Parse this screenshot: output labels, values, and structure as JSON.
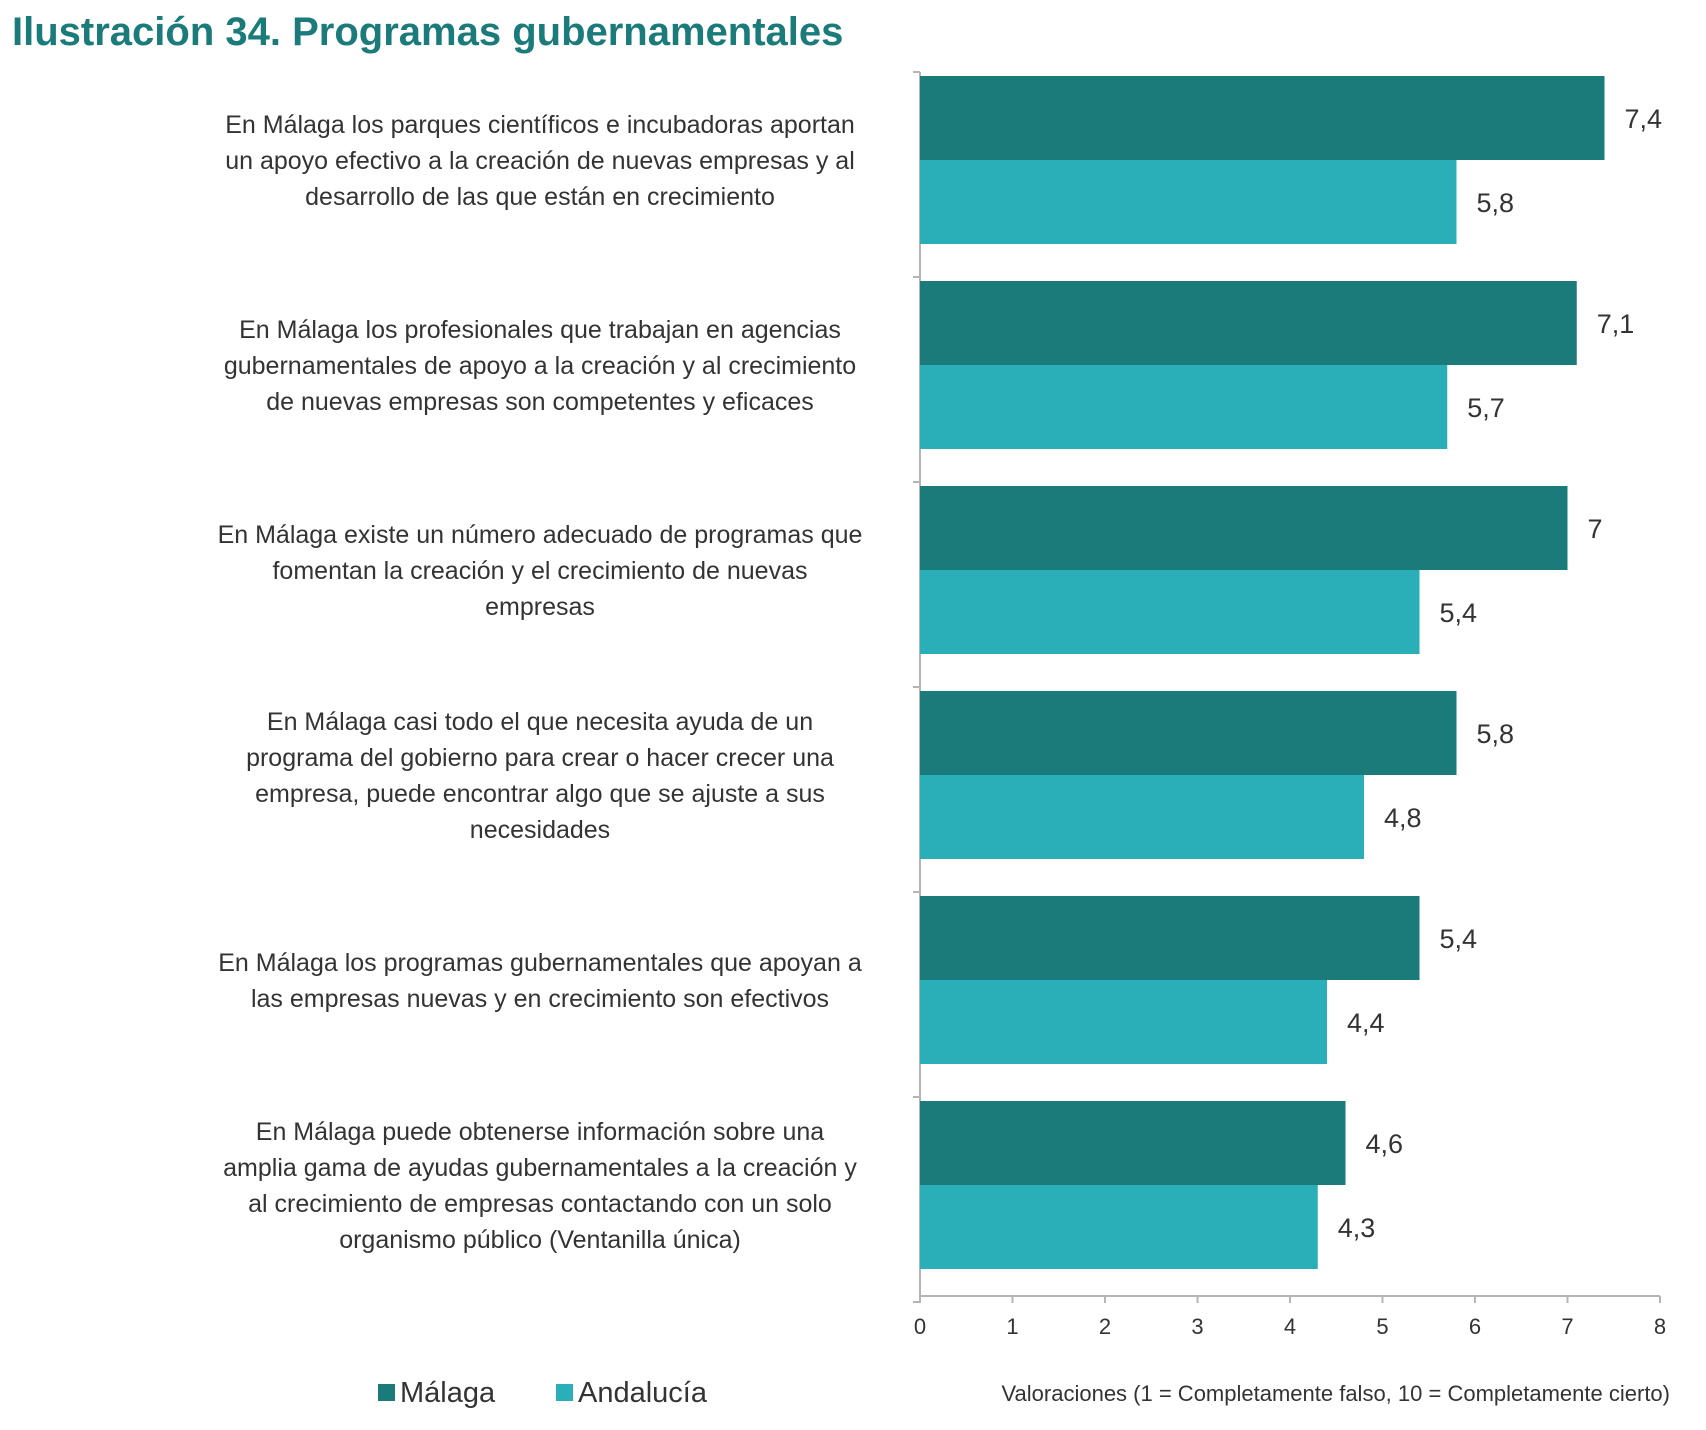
{
  "title": "Ilustración 34. Programas gubernamentales",
  "colors": {
    "malaga": "#1b7a7a",
    "andalucia": "#2aaeb8",
    "title": "#1b7a7a"
  },
  "chart_data": {
    "type": "bar",
    "orientation": "horizontal",
    "categories": [
      [
        "En Málaga los parques científicos e incubadoras aportan",
        "un apoyo efectivo a la creación de nuevas empresas y al",
        "desarrollo de las que están en crecimiento"
      ],
      [
        "En Málaga los profesionales que trabajan en agencias",
        "gubernamentales de apoyo a la creación y al crecimiento",
        "de nuevas empresas son competentes y eficaces"
      ],
      [
        "En Málaga existe un número adecuado de programas que",
        "fomentan la creación y el crecimiento de nuevas",
        "empresas"
      ],
      [
        "En Málaga casi todo el que necesita ayuda de un",
        "programa del gobierno para crear o hacer crecer una",
        "empresa, puede encontrar algo que se ajuste a sus",
        "necesidades"
      ],
      [
        "En Málaga los programas gubernamentales que apoyan a",
        "las empresas nuevas y en crecimiento son efectivos"
      ],
      [
        "En Málaga puede obtenerse información sobre una",
        "amplia gama de ayudas gubernamentales a la creación y",
        "al crecimiento de empresas contactando con un solo",
        "organismo público (Ventanilla única)"
      ]
    ],
    "series": [
      {
        "name": "Málaga",
        "values": [
          7.4,
          7.1,
          7,
          5.8,
          5.4,
          4.6
        ],
        "labels": [
          "7,4",
          "7,1",
          "7",
          "5,8",
          "5,4",
          "4,6"
        ]
      },
      {
        "name": "Andalucía",
        "values": [
          5.8,
          5.7,
          5.4,
          4.8,
          4.4,
          4.3
        ],
        "labels": [
          "5,8",
          "5,7",
          "5,4",
          "4,8",
          "4,4",
          "4,3"
        ]
      }
    ],
    "xlim": [
      0,
      8
    ],
    "xticks": [
      "0",
      "1",
      "2",
      "3",
      "4",
      "5",
      "6",
      "7",
      "8"
    ],
    "axis_note": "Valoraciones (1 = Completamente falso, 10 = Completamente cierto)",
    "legend_position": "bottom-left",
    "grid": false
  }
}
